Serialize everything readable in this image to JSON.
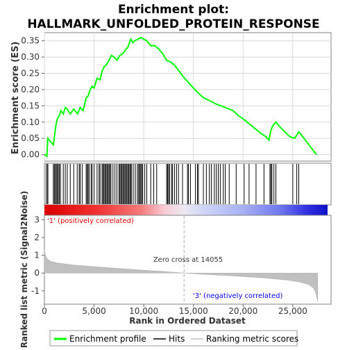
{
  "chart_data": {
    "type": "line",
    "title_line1": "Enrichment plot:",
    "title_line2": "HALLMARK_UNFOLDED_PROTEIN_RESPONSE",
    "es_panel": {
      "ylabel": "Enrichment score (ES)",
      "ylim": [
        -0.02,
        0.375
      ],
      "yticks": [
        "0.00",
        "0.05",
        "0.10",
        "0.15",
        "0.20",
        "0.25",
        "0.30",
        "0.35"
      ],
      "ytick_values": [
        0,
        0.05,
        0.1,
        0.15,
        0.2,
        0.25,
        0.3,
        0.35
      ],
      "grid": true,
      "series": [
        {
          "name": "Enrichment profile",
          "color": "#00ff00",
          "x": [
            0,
            250,
            330,
            900,
            1150,
            1300,
            1500,
            1650,
            1900,
            2100,
            2300,
            2600,
            2950,
            3350,
            3600,
            3900,
            4200,
            4400,
            4600,
            4800,
            5000,
            5300,
            5600,
            5800,
            6000,
            6200,
            6500,
            6750,
            7000,
            7300,
            7600,
            7900,
            8100,
            8400,
            8700,
            8900,
            9100,
            9400,
            9700,
            10000,
            10300,
            10700,
            11100,
            11500,
            11900,
            12300,
            12700,
            13100,
            13600,
            14100,
            14700,
            15300,
            16000,
            16700,
            17300,
            17800,
            18200,
            18600,
            19000,
            19500,
            20000,
            20600,
            21200,
            21800,
            22300,
            22600,
            22800,
            23000,
            23300,
            23700,
            24200,
            24700,
            25200,
            25600,
            26000,
            26500,
            27000,
            27400
          ],
          "y": [
            0,
            -0.005,
            0.05,
            0.03,
            0.09,
            0.11,
            0.12,
            0.135,
            0.125,
            0.145,
            0.14,
            0.125,
            0.14,
            0.125,
            0.145,
            0.135,
            0.175,
            0.18,
            0.2,
            0.21,
            0.205,
            0.235,
            0.23,
            0.255,
            0.27,
            0.275,
            0.29,
            0.305,
            0.3,
            0.29,
            0.305,
            0.31,
            0.32,
            0.33,
            0.355,
            0.345,
            0.35,
            0.355,
            0.36,
            0.355,
            0.35,
            0.335,
            0.335,
            0.325,
            0.31,
            0.29,
            0.285,
            0.275,
            0.255,
            0.235,
            0.215,
            0.195,
            0.175,
            0.165,
            0.155,
            0.15,
            0.145,
            0.14,
            0.135,
            0.12,
            0.11,
            0.095,
            0.08,
            0.065,
            0.055,
            0.045,
            0.075,
            0.09,
            0.1,
            0.085,
            0.07,
            0.055,
            0.05,
            0.07,
            0.055,
            0.035,
            0.015,
            0
          ]
        }
      ]
    },
    "hits": {
      "name": "Hits",
      "x": [
        180,
        310,
        350,
        900,
        1000,
        1100,
        1200,
        1300,
        1400,
        1500,
        1620,
        1900,
        2100,
        2300,
        2600,
        2950,
        3300,
        3500,
        3600,
        3800,
        4200,
        4300,
        4400,
        4500,
        4700,
        4800,
        5000,
        5300,
        5500,
        5600,
        5800,
        5900,
        6000,
        6100,
        6200,
        6300,
        6400,
        6500,
        6600,
        6700,
        6900,
        7100,
        7300,
        7500,
        7600,
        7700,
        7800,
        7900,
        8000,
        8100,
        8200,
        8300,
        8400,
        8500,
        8600,
        8700,
        8800,
        9000,
        9200,
        9400,
        9500,
        9600,
        9700,
        9800,
        9900,
        10100,
        10300,
        10700,
        11000,
        11300,
        12300,
        12400,
        12500,
        12600,
        12800,
        12900,
        13100,
        13300,
        13500,
        13900,
        14400,
        14500,
        14700,
        15200,
        15400,
        15500,
        16000,
        16300,
        16600,
        16800,
        17100,
        17300,
        17500,
        17700,
        18000,
        18200,
        18600,
        19300,
        20100,
        20600,
        21300,
        22100,
        22700,
        22800,
        22900,
        23100,
        23300,
        25000,
        25400,
        25600
      ]
    },
    "ranked_panel": {
      "ylabel": "Ranked list metric (Signal2Noise)",
      "ylim": [
        -1.75,
        3.25
      ],
      "yticks": [
        "-1",
        "0",
        "1",
        "2",
        "3"
      ],
      "ytick_values": [
        -1,
        0,
        1,
        2,
        3
      ],
      "fill_color": "#c0c0c0",
      "x": [
        0,
        40,
        120,
        300,
        700,
        1500,
        3000,
        6000,
        9000,
        12000,
        14055,
        16000,
        19000,
        22000,
        24500,
        25800,
        26600,
        27100,
        27300,
        27450,
        27500
      ],
      "y": [
        1.28,
        1.18,
        0.95,
        0.78,
        0.65,
        0.55,
        0.45,
        0.32,
        0.2,
        0.09,
        0.0,
        -0.07,
        -0.16,
        -0.27,
        -0.4,
        -0.52,
        -0.65,
        -0.85,
        -1.1,
        -1.45,
        -1.6
      ]
    },
    "xaxis": {
      "xlabel": "Rank in Ordered Dataset",
      "xlim": [
        0,
        28850
      ],
      "xticks": [
        "0",
        "5,000",
        "10,000",
        "15,000",
        "20,000",
        "25,000"
      ],
      "xtick_values": [
        0,
        5000,
        10000,
        15000,
        20000,
        25000
      ]
    },
    "annotations": {
      "positive_label": "'1' (positively correlated)",
      "negative_label": "'3' (negatively correlated)",
      "zero_cross_label": "Zero cross at 14055",
      "zero_cross_value": 14055,
      "positive_color": "#ff0000",
      "negative_color": "#0000ff"
    },
    "legend": {
      "placement": "bottom",
      "items": [
        {
          "label": "Enrichment profile",
          "color": "#00ff00",
          "icon": "line-swatch"
        },
        {
          "label": "Hits",
          "color": "#000000",
          "icon": "line-swatch"
        },
        {
          "label": "Ranking metric scores",
          "color": "#c0c0c0",
          "icon": "line-swatch"
        }
      ]
    }
  }
}
